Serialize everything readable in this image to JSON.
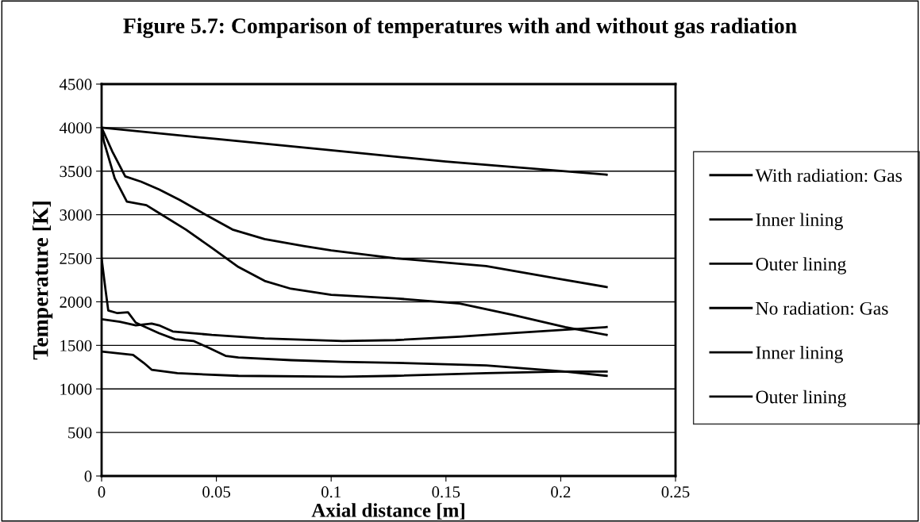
{
  "chart_data": {
    "type": "line",
    "title": "Figure 5.7: Comparison of temperatures with and without gas radiation",
    "xlabel": "Axial distance [m]",
    "ylabel": "Temperature [K]",
    "xlim": [
      0,
      0.25
    ],
    "xticks": [
      0,
      0.05,
      0.1,
      0.15,
      0.2,
      0.25
    ],
    "ylim": [
      0,
      4500
    ],
    "yticks": [
      0,
      500,
      1000,
      1500,
      2000,
      2500,
      3000,
      3500,
      4000,
      4500
    ],
    "grid": "y",
    "legend": "right",
    "marker": "none",
    "line_style": "solid",
    "series": [
      {
        "name": "With radiation: Gas",
        "color": "#000000",
        "x": [
          0,
          0.0046,
          0.0103,
          0.0172,
          0.025,
          0.034,
          0.046,
          0.057,
          0.071,
          0.088,
          0.1,
          0.128,
          0.1675,
          0.2,
          0.22
        ],
        "values": [
          4000,
          3730,
          3440,
          3380,
          3290,
          3170,
          2990,
          2830,
          2720,
          2640,
          2590,
          2500,
          2410,
          2260,
          2170
        ]
      },
      {
        "name": "Inner lining",
        "color": "#000000",
        "x": [
          0,
          0.001,
          0.0057,
          0.011,
          0.0195,
          0.025,
          0.0367,
          0.048,
          0.0596,
          0.071,
          0.0825,
          0.1,
          0.128,
          0.156,
          0.179,
          0.202,
          0.22
        ],
        "values": [
          4000,
          3840,
          3420,
          3150,
          3110,
          3020,
          2830,
          2620,
          2400,
          2240,
          2150,
          2080,
          2040,
          1980,
          1850,
          1710,
          1620
        ]
      },
      {
        "name": "Outer lining",
        "color": "#000000",
        "x": [
          0,
          0.0017,
          0.0029,
          0.0069,
          0.0115,
          0.0149,
          0.0183,
          0.025,
          0.032,
          0.04,
          0.046,
          0.054,
          0.0596,
          0.0825,
          0.105,
          0.128,
          0.1675,
          0.202,
          0.22
        ],
        "values": [
          2500,
          2140,
          1900,
          1870,
          1880,
          1760,
          1720,
          1640,
          1570,
          1550,
          1480,
          1380,
          1360,
          1330,
          1310,
          1300,
          1270,
          1200,
          1150
        ]
      },
      {
        "name": "No radiation: Gas",
        "color": "#000000",
        "x": [
          0,
          0.05,
          0.1,
          0.15,
          0.22
        ],
        "values": [
          4000,
          3870,
          3740,
          3610,
          3460
        ]
      },
      {
        "name": "Inner lining",
        "color": "#000000",
        "x": [
          0,
          0.008,
          0.0149,
          0.0218,
          0.025,
          0.031,
          0.048,
          0.071,
          0.105,
          0.128,
          0.156,
          0.179,
          0.202,
          0.22
        ],
        "values": [
          1800,
          1770,
          1730,
          1750,
          1730,
          1660,
          1620,
          1580,
          1550,
          1560,
          1600,
          1640,
          1680,
          1710
        ]
      },
      {
        "name": "Outer lining",
        "color": "#000000",
        "x": [
          0,
          0.0137,
          0.0183,
          0.0218,
          0.033,
          0.0596,
          0.105,
          0.128,
          0.1675,
          0.2,
          0.22
        ],
        "values": [
          1430,
          1390,
          1300,
          1220,
          1180,
          1150,
          1140,
          1150,
          1180,
          1200,
          1200
        ]
      }
    ]
  }
}
